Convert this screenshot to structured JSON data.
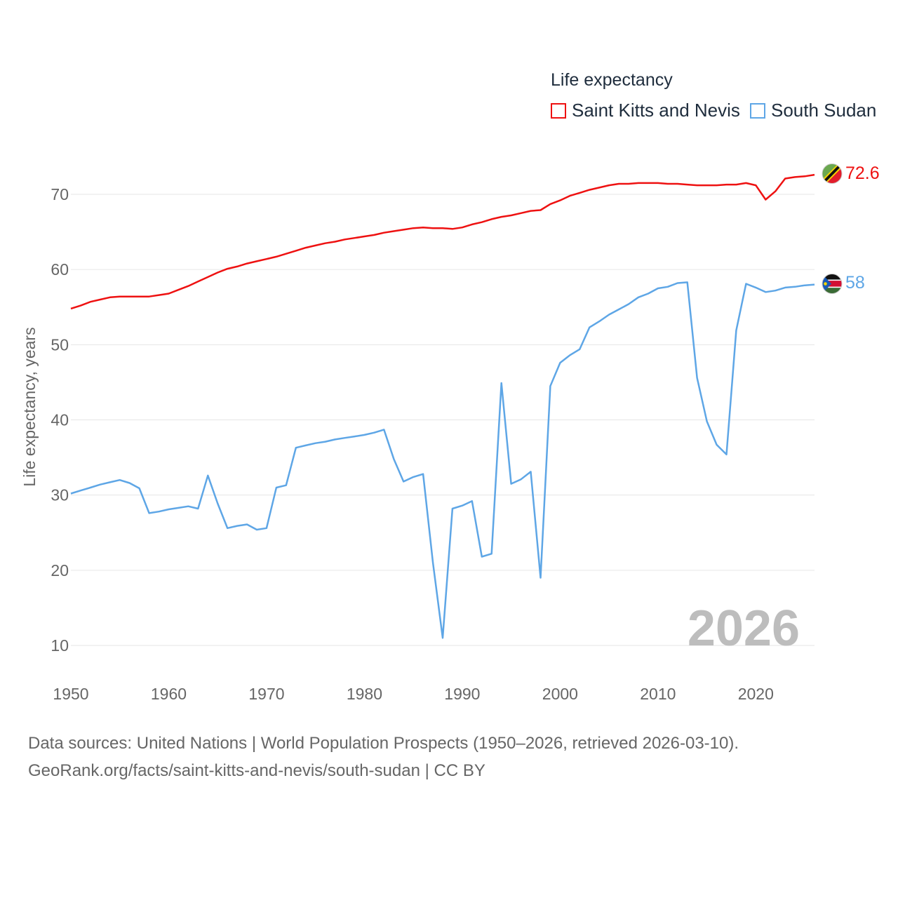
{
  "legend": {
    "title": "Life expectancy",
    "items": [
      {
        "label": "Saint Kitts and Nevis",
        "color": "#ee1111"
      },
      {
        "label": "South Sudan",
        "color": "#5ea6e6"
      }
    ]
  },
  "current_year": "2026",
  "footer": {
    "line1": "Data sources: United Nations | World Population Prospects (1950–2026, retrieved 2026-03-10).",
    "line2": "GeoRank.org/facts/saint-kitts-and-nevis/south-sudan | CC BY"
  },
  "chart_data": {
    "type": "line",
    "title": "Life expectancy",
    "xlabel": "",
    "ylabel": "Life expectancy, years",
    "xlim": [
      1950,
      2026
    ],
    "ylim": [
      10,
      75
    ],
    "x_ticks": [
      1950,
      1960,
      1970,
      1980,
      1990,
      2000,
      2010,
      2020
    ],
    "y_ticks": [
      10,
      20,
      30,
      40,
      50,
      60,
      70
    ],
    "grid": true,
    "legend_position": "top-right",
    "series": [
      {
        "name": "Saint Kitts and Nevis",
        "color": "#ee1111",
        "end_label": "72.6",
        "flag": "saint-kitts-and-nevis-flag",
        "x": [
          1950,
          1951,
          1952,
          1953,
          1954,
          1955,
          1956,
          1957,
          1958,
          1959,
          1960,
          1961,
          1962,
          1963,
          1964,
          1965,
          1966,
          1967,
          1968,
          1969,
          1970,
          1971,
          1972,
          1973,
          1974,
          1975,
          1976,
          1977,
          1978,
          1979,
          1980,
          1981,
          1982,
          1983,
          1984,
          1985,
          1986,
          1987,
          1988,
          1989,
          1990,
          1991,
          1992,
          1993,
          1994,
          1995,
          1996,
          1997,
          1998,
          1999,
          2000,
          2001,
          2002,
          2003,
          2004,
          2005,
          2006,
          2007,
          2008,
          2009,
          2010,
          2011,
          2012,
          2013,
          2014,
          2015,
          2016,
          2017,
          2018,
          2019,
          2020,
          2021,
          2022,
          2023,
          2024,
          2025,
          2026
        ],
        "values": [
          54.8,
          55.2,
          55.7,
          56.0,
          56.3,
          56.4,
          56.4,
          56.4,
          56.4,
          56.6,
          56.8,
          57.3,
          57.8,
          58.4,
          59.0,
          59.6,
          60.1,
          60.4,
          60.8,
          61.1,
          61.4,
          61.7,
          62.1,
          62.5,
          62.9,
          63.2,
          63.5,
          63.7,
          64.0,
          64.2,
          64.4,
          64.6,
          64.9,
          65.1,
          65.3,
          65.5,
          65.6,
          65.5,
          65.5,
          65.4,
          65.6,
          66.0,
          66.3,
          66.7,
          67.0,
          67.2,
          67.5,
          67.8,
          67.9,
          68.7,
          69.2,
          69.8,
          70.2,
          70.6,
          70.9,
          71.2,
          71.4,
          71.4,
          71.5,
          71.5,
          71.5,
          71.4,
          71.4,
          71.3,
          71.2,
          71.2,
          71.2,
          71.3,
          71.3,
          71.5,
          71.2,
          69.3,
          70.4,
          72.1,
          72.3,
          72.4,
          72.6
        ]
      },
      {
        "name": "South Sudan",
        "color": "#5ea6e6",
        "end_label": "58",
        "flag": "south-sudan-flag",
        "x": [
          1950,
          1951,
          1952,
          1953,
          1954,
          1955,
          1956,
          1957,
          1958,
          1959,
          1960,
          1961,
          1962,
          1963,
          1964,
          1965,
          1966,
          1967,
          1968,
          1969,
          1970,
          1971,
          1972,
          1973,
          1974,
          1975,
          1976,
          1977,
          1978,
          1979,
          1980,
          1981,
          1982,
          1983,
          1984,
          1985,
          1986,
          1987,
          1988,
          1989,
          1990,
          1991,
          1992,
          1993,
          1994,
          1995,
          1996,
          1997,
          1998,
          1999,
          2000,
          2001,
          2002,
          2003,
          2004,
          2005,
          2006,
          2007,
          2008,
          2009,
          2010,
          2011,
          2012,
          2013,
          2014,
          2015,
          2016,
          2017,
          2018,
          2019,
          2020,
          2021,
          2022,
          2023,
          2024,
          2025,
          2026
        ],
        "values": [
          30.2,
          30.6,
          31.0,
          31.4,
          31.7,
          32.0,
          31.6,
          30.9,
          27.6,
          27.8,
          28.1,
          28.3,
          28.5,
          28.2,
          32.6,
          28.9,
          25.6,
          25.9,
          26.1,
          25.4,
          25.6,
          31.0,
          31.3,
          36.3,
          36.6,
          36.9,
          37.1,
          37.4,
          37.6,
          37.8,
          38.0,
          38.3,
          38.7,
          34.8,
          31.8,
          32.4,
          32.8,
          21.0,
          11.0,
          28.2,
          28.6,
          29.2,
          21.8,
          22.2,
          44.9,
          31.5,
          32.1,
          33.1,
          19.0,
          44.5,
          47.6,
          48.6,
          49.4,
          52.3,
          53.1,
          54.0,
          54.7,
          55.4,
          56.3,
          56.8,
          57.5,
          57.7,
          58.2,
          58.3,
          45.6,
          39.8,
          36.7,
          35.4,
          51.9,
          58.1,
          57.6,
          57.0,
          57.2,
          57.6,
          57.7,
          57.9,
          58.0
        ]
      }
    ]
  }
}
